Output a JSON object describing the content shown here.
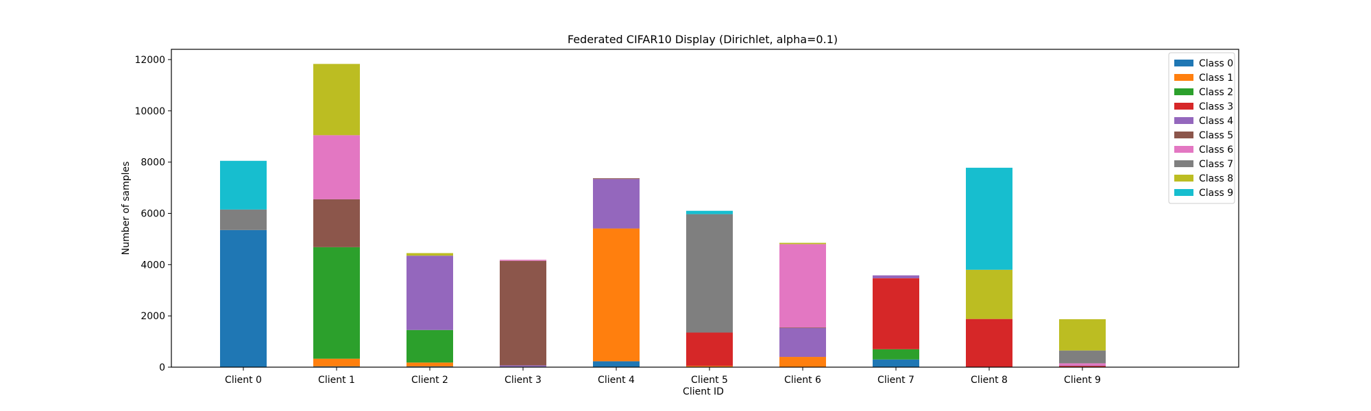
{
  "chart_data": {
    "type": "bar",
    "stacked": true,
    "title": "Federated CIFAR10 Display (Dirichlet, alpha=0.1)",
    "xlabel": "Client ID",
    "ylabel": "Number of samples",
    "ylim": [
      0,
      12400
    ],
    "yticks": [
      0,
      2000,
      4000,
      6000,
      8000,
      10000,
      12000
    ],
    "legend_position": "top-right",
    "grid": false,
    "categories": [
      "Client 0",
      "Client 1",
      "Client 2",
      "Client 3",
      "Client 4",
      "Client 5",
      "Client 6",
      "Client 7",
      "Client 8",
      "Client 9"
    ],
    "series": [
      {
        "name": "Class 0",
        "color": "#1f77b4",
        "values": [
          5350,
          30,
          30,
          20,
          230,
          0,
          0,
          300,
          0,
          0
        ]
      },
      {
        "name": "Class 1",
        "color": "#ff7f0e",
        "values": [
          0,
          300,
          150,
          0,
          5180,
          50,
          400,
          0,
          0,
          0
        ]
      },
      {
        "name": "Class 2",
        "color": "#2ca02c",
        "values": [
          0,
          4350,
          1270,
          0,
          0,
          0,
          0,
          400,
          0,
          0
        ]
      },
      {
        "name": "Class 3",
        "color": "#d62728",
        "values": [
          0,
          0,
          0,
          0,
          0,
          1300,
          0,
          2770,
          1880,
          50
        ]
      },
      {
        "name": "Class 4",
        "color": "#9467bd",
        "values": [
          0,
          0,
          2900,
          50,
          1930,
          0,
          1130,
          110,
          0,
          20
        ]
      },
      {
        "name": "Class 5",
        "color": "#8c564b",
        "values": [
          0,
          1870,
          0,
          4080,
          30,
          0,
          20,
          0,
          0,
          0
        ]
      },
      {
        "name": "Class 6",
        "color": "#e377c2",
        "values": [
          0,
          2500,
          0,
          40,
          0,
          0,
          3250,
          0,
          0,
          80
        ]
      },
      {
        "name": "Class 7",
        "color": "#7f7f7f",
        "values": [
          800,
          0,
          0,
          0,
          0,
          4620,
          0,
          0,
          0,
          500
        ]
      },
      {
        "name": "Class 8",
        "color": "#bcbd22",
        "values": [
          0,
          2780,
          100,
          0,
          0,
          0,
          50,
          0,
          1920,
          1220
        ]
      },
      {
        "name": "Class 9",
        "color": "#17becf",
        "values": [
          1900,
          0,
          0,
          0,
          0,
          130,
          0,
          0,
          3980,
          0
        ]
      }
    ]
  }
}
